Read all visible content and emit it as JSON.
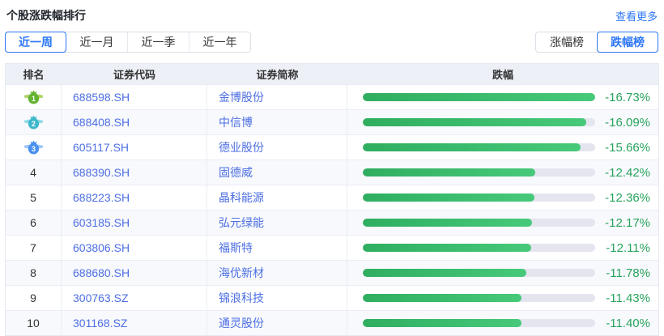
{
  "page": {
    "title": "个股涨跌幅排行",
    "more_link": "查看更多"
  },
  "period_tabs": [
    {
      "key": "last-week",
      "label": "近一周",
      "active": true
    },
    {
      "key": "last-month",
      "label": "近一月",
      "active": false
    },
    {
      "key": "last-quarter",
      "label": "近一季",
      "active": false
    },
    {
      "key": "last-year",
      "label": "近一年",
      "active": false
    }
  ],
  "rank_type_tabs": [
    {
      "key": "gainers",
      "label": "涨幅榜",
      "active": false
    },
    {
      "key": "losers",
      "label": "跌幅榜",
      "active": true
    }
  ],
  "table": {
    "headers": {
      "rank": "排名",
      "code": "证券代码",
      "name": "证券简称",
      "change": "跌幅"
    },
    "max_value": 16.73,
    "rows": [
      {
        "rank": 1,
        "code": "688598.SH",
        "name": "金博股份",
        "change": "-16.73%",
        "value": 16.73
      },
      {
        "rank": 2,
        "code": "688408.SH",
        "name": "中信博",
        "change": "-16.09%",
        "value": 16.09
      },
      {
        "rank": 3,
        "code": "605117.SH",
        "name": "德业股份",
        "change": "-15.66%",
        "value": 15.66
      },
      {
        "rank": 4,
        "code": "688390.SH",
        "name": "固德威",
        "change": "-12.42%",
        "value": 12.42
      },
      {
        "rank": 5,
        "code": "688223.SH",
        "name": "晶科能源",
        "change": "-12.36%",
        "value": 12.36
      },
      {
        "rank": 6,
        "code": "603185.SH",
        "name": "弘元绿能",
        "change": "-12.17%",
        "value": 12.17
      },
      {
        "rank": 7,
        "code": "603806.SH",
        "name": "福斯特",
        "change": "-12.11%",
        "value": 12.11
      },
      {
        "rank": 8,
        "code": "688680.SH",
        "name": "海优新材",
        "change": "-11.78%",
        "value": 11.78
      },
      {
        "rank": 9,
        "code": "300763.SZ",
        "name": "锦浪科技",
        "change": "-11.43%",
        "value": 11.43
      },
      {
        "rank": 10,
        "code": "301168.SZ",
        "name": "通灵股份",
        "change": "-11.40%",
        "value": 11.4
      }
    ]
  },
  "colors": {
    "accent_blue": "#2d77f5",
    "stock_blue": "#4d6fe3",
    "pct_green": "#27a35d",
    "bar_green_start": "#2fae60",
    "bar_green_end": "#47c97a",
    "bar_track_gray": "#e4e5ef",
    "header_bg": "#eef0f8",
    "row_alt_bg": "#f8f9fc",
    "medals": [
      {
        "main": "#62b332",
        "light": "#aed468"
      },
      {
        "main": "#3eb7cb",
        "light": "#93dbe6"
      },
      {
        "main": "#4a90ee",
        "light": "#a0c6f7"
      }
    ]
  }
}
